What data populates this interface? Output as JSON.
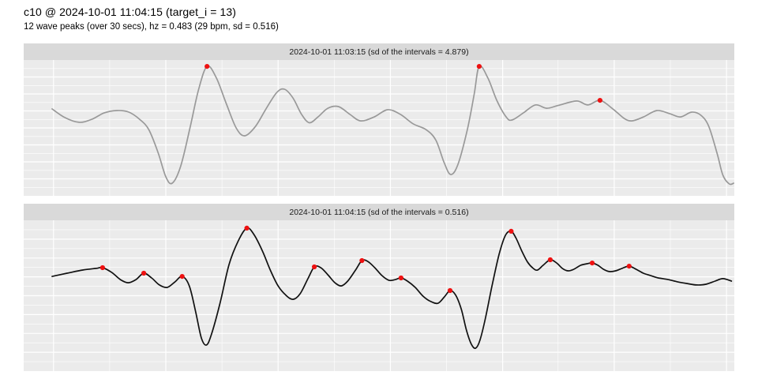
{
  "header": {
    "title": "c10 @ 2024-10-01 11:04:15 (target_i = 13)",
    "subtitle": "12 wave peaks (over 30 secs), hz = 0.483 (29 bpm, sd = 0.516)"
  },
  "chart_data": {
    "type": "line",
    "title": "c10 @ 2024-10-01 11:04:15 (target_i = 13)",
    "subtitle": "12 wave peaks (over 30 secs), hz = 0.483 (29 bpm, sd = 0.516)",
    "layout": "two stacked facet panels, each with a gray strip header; no axis tick labels visible; white gridlines on light gray panel background",
    "x_axis": {
      "label": "",
      "window_secs": 30,
      "tick_labels_visible": false
    },
    "y_axis": {
      "label": "",
      "tick_labels_visible": false
    },
    "stats": {
      "wave_peaks": 12,
      "window_secs": 30,
      "hz": 0.483,
      "bpm": 29,
      "sd": 0.516,
      "target_i": 13
    },
    "colors": {
      "panel_bg": "#ebebeb",
      "strip_bg": "#d9d9d9",
      "grid": "#ffffff",
      "peak_dot": "#ee1111",
      "line_top": "#999999",
      "line_bottom": "#111111"
    },
    "coords_note": "points and peaks are normalized panel coordinates: x 0-1 left to right, y 0-1 top to bottom",
    "grid": {
      "h_divisions": 16,
      "v_major": [
        0.042,
        0.2,
        0.358,
        0.516,
        0.674,
        0.831,
        0.989
      ],
      "v_minor": [
        0.121,
        0.279,
        0.437,
        0.595,
        0.752,
        0.91
      ]
    },
    "panels": [
      {
        "strip_label": "2024-10-01 11:03:15 (sd of the intervals = 4.879)",
        "sd_of_intervals": 4.879,
        "line_color": "#999999",
        "points": [
          [
            0.04,
            0.36
          ],
          [
            0.058,
            0.424
          ],
          [
            0.078,
            0.459
          ],
          [
            0.096,
            0.436
          ],
          [
            0.113,
            0.39
          ],
          [
            0.131,
            0.372
          ],
          [
            0.148,
            0.384
          ],
          [
            0.163,
            0.436
          ],
          [
            0.176,
            0.512
          ],
          [
            0.189,
            0.68
          ],
          [
            0.2,
            0.86
          ],
          [
            0.209,
            0.907
          ],
          [
            0.221,
            0.78
          ],
          [
            0.234,
            0.5
          ],
          [
            0.246,
            0.22
          ],
          [
            0.258,
            0.047
          ],
          [
            0.271,
            0.13
          ],
          [
            0.285,
            0.32
          ],
          [
            0.299,
            0.5
          ],
          [
            0.311,
            0.558
          ],
          [
            0.326,
            0.49
          ],
          [
            0.341,
            0.36
          ],
          [
            0.356,
            0.24
          ],
          [
            0.367,
            0.215
          ],
          [
            0.379,
            0.28
          ],
          [
            0.391,
            0.4
          ],
          [
            0.402,
            0.462
          ],
          [
            0.414,
            0.42
          ],
          [
            0.428,
            0.355
          ],
          [
            0.443,
            0.343
          ],
          [
            0.459,
            0.4
          ],
          [
            0.474,
            0.448
          ],
          [
            0.493,
            0.42
          ],
          [
            0.512,
            0.366
          ],
          [
            0.53,
            0.4
          ],
          [
            0.548,
            0.47
          ],
          [
            0.566,
            0.512
          ],
          [
            0.58,
            0.59
          ],
          [
            0.592,
            0.76
          ],
          [
            0.601,
            0.843
          ],
          [
            0.611,
            0.77
          ],
          [
            0.624,
            0.52
          ],
          [
            0.634,
            0.25
          ],
          [
            0.641,
            0.047
          ],
          [
            0.653,
            0.13
          ],
          [
            0.666,
            0.3
          ],
          [
            0.679,
            0.42
          ],
          [
            0.687,
            0.442
          ],
          [
            0.703,
            0.39
          ],
          [
            0.72,
            0.331
          ],
          [
            0.736,
            0.355
          ],
          [
            0.752,
            0.335
          ],
          [
            0.778,
            0.302
          ],
          [
            0.794,
            0.331
          ],
          [
            0.811,
            0.297
          ],
          [
            0.829,
            0.36
          ],
          [
            0.845,
            0.43
          ],
          [
            0.856,
            0.448
          ],
          [
            0.872,
            0.42
          ],
          [
            0.891,
            0.372
          ],
          [
            0.909,
            0.395
          ],
          [
            0.924,
            0.419
          ],
          [
            0.94,
            0.384
          ],
          [
            0.953,
            0.407
          ],
          [
            0.964,
            0.488
          ],
          [
            0.976,
            0.692
          ],
          [
            0.984,
            0.849
          ],
          [
            0.993,
            0.913
          ],
          [
            0.999,
            0.907
          ]
        ],
        "peaks": [
          [
            0.258,
            0.047
          ],
          [
            0.641,
            0.047
          ],
          [
            0.811,
            0.297
          ]
        ]
      },
      {
        "strip_label": "2024-10-01 11:04:15 (sd of the intervals = 0.516)",
        "sd_of_intervals": 0.516,
        "line_color": "#111111",
        "points": [
          [
            0.04,
            0.372
          ],
          [
            0.061,
            0.351
          ],
          [
            0.083,
            0.33
          ],
          [
            0.102,
            0.319
          ],
          [
            0.111,
            0.314
          ],
          [
            0.124,
            0.346
          ],
          [
            0.136,
            0.393
          ],
          [
            0.147,
            0.414
          ],
          [
            0.158,
            0.393
          ],
          [
            0.169,
            0.351
          ],
          [
            0.18,
            0.382
          ],
          [
            0.191,
            0.429
          ],
          [
            0.202,
            0.445
          ],
          [
            0.213,
            0.408
          ],
          [
            0.223,
            0.372
          ],
          [
            0.233,
            0.435
          ],
          [
            0.242,
            0.607
          ],
          [
            0.25,
            0.78
          ],
          [
            0.257,
            0.827
          ],
          [
            0.264,
            0.759
          ],
          [
            0.276,
            0.555
          ],
          [
            0.289,
            0.293
          ],
          [
            0.302,
            0.136
          ],
          [
            0.314,
            0.052
          ],
          [
            0.324,
            0.094
          ],
          [
            0.336,
            0.204
          ],
          [
            0.347,
            0.33
          ],
          [
            0.358,
            0.435
          ],
          [
            0.369,
            0.497
          ],
          [
            0.379,
            0.524
          ],
          [
            0.389,
            0.487
          ],
          [
            0.4,
            0.387
          ],
          [
            0.409,
            0.309
          ],
          [
            0.418,
            0.314
          ],
          [
            0.428,
            0.361
          ],
          [
            0.438,
            0.414
          ],
          [
            0.447,
            0.435
          ],
          [
            0.456,
            0.403
          ],
          [
            0.467,
            0.33
          ],
          [
            0.476,
            0.267
          ],
          [
            0.484,
            0.272
          ],
          [
            0.494,
            0.314
          ],
          [
            0.504,
            0.366
          ],
          [
            0.514,
            0.398
          ],
          [
            0.523,
            0.393
          ],
          [
            0.531,
            0.382
          ],
          [
            0.54,
            0.403
          ],
          [
            0.551,
            0.445
          ],
          [
            0.562,
            0.503
          ],
          [
            0.573,
            0.539
          ],
          [
            0.583,
            0.55
          ],
          [
            0.592,
            0.508
          ],
          [
            0.6,
            0.466
          ],
          [
            0.608,
            0.497
          ],
          [
            0.616,
            0.592
          ],
          [
            0.623,
            0.728
          ],
          [
            0.63,
            0.822
          ],
          [
            0.636,
            0.848
          ],
          [
            0.642,
            0.796
          ],
          [
            0.65,
            0.644
          ],
          [
            0.659,
            0.435
          ],
          [
            0.669,
            0.225
          ],
          [
            0.678,
            0.099
          ],
          [
            0.686,
            0.073
          ],
          [
            0.693,
            0.12
          ],
          [
            0.701,
            0.204
          ],
          [
            0.709,
            0.277
          ],
          [
            0.717,
            0.319
          ],
          [
            0.723,
            0.33
          ],
          [
            0.731,
            0.298
          ],
          [
            0.741,
            0.262
          ],
          [
            0.75,
            0.283
          ],
          [
            0.758,
            0.319
          ],
          [
            0.766,
            0.335
          ],
          [
            0.774,
            0.325
          ],
          [
            0.784,
            0.298
          ],
          [
            0.793,
            0.288
          ],
          [
            0.8,
            0.283
          ],
          [
            0.808,
            0.298
          ],
          [
            0.816,
            0.325
          ],
          [
            0.824,
            0.34
          ],
          [
            0.833,
            0.335
          ],
          [
            0.842,
            0.319
          ],
          [
            0.852,
            0.304
          ],
          [
            0.862,
            0.325
          ],
          [
            0.872,
            0.351
          ],
          [
            0.882,
            0.366
          ],
          [
            0.893,
            0.382
          ],
          [
            0.907,
            0.393
          ],
          [
            0.92,
            0.408
          ],
          [
            0.933,
            0.419
          ],
          [
            0.947,
            0.429
          ],
          [
            0.96,
            0.424
          ],
          [
            0.973,
            0.403
          ],
          [
            0.984,
            0.387
          ],
          [
            0.996,
            0.403
          ]
        ],
        "peaks": [
          [
            0.111,
            0.314
          ],
          [
            0.169,
            0.351
          ],
          [
            0.223,
            0.372
          ],
          [
            0.314,
            0.052
          ],
          [
            0.409,
            0.309
          ],
          [
            0.476,
            0.267
          ],
          [
            0.531,
            0.382
          ],
          [
            0.6,
            0.466
          ],
          [
            0.686,
            0.073
          ],
          [
            0.741,
            0.262
          ],
          [
            0.8,
            0.283
          ],
          [
            0.852,
            0.304
          ]
        ]
      }
    ]
  }
}
